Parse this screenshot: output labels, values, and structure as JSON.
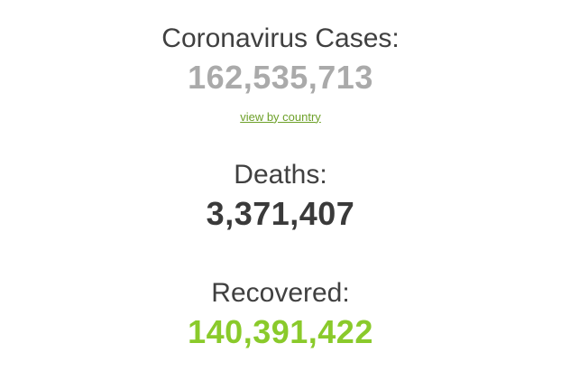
{
  "counters": {
    "cases": {
      "label": "Coronavirus Cases:",
      "value": "162,535,713",
      "value_color": "#aaaaaa",
      "link_label": "view by country",
      "link_color": "#6da029"
    },
    "deaths": {
      "label": "Deaths:",
      "value": "3,371,407",
      "value_color": "#3a3a3a"
    },
    "recovered": {
      "label": "Recovered:",
      "value": "140,391,422",
      "value_color": "#8aca2b"
    }
  },
  "colors": {
    "background": "#ffffff",
    "heading_text": "#404040",
    "cases_gray": "#aaaaaa",
    "deaths_dark": "#3a3a3a",
    "recovered_green": "#8aca2b",
    "link_green": "#6da029"
  }
}
